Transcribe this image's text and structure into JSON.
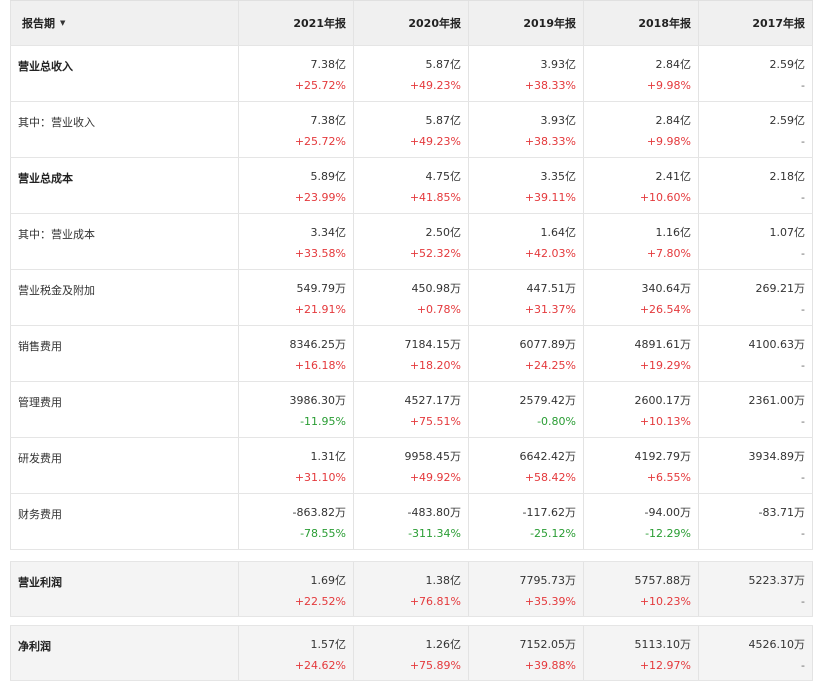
{
  "header": {
    "period_label": "报告期",
    "columns": [
      "2021年报",
      "2020年报",
      "2019年报",
      "2018年报",
      "2017年报"
    ]
  },
  "colors": {
    "up": "#e4393c",
    "down": "#2a9d34"
  },
  "rows": [
    {
      "label": "营业总收入",
      "bold": true,
      "values": [
        "7.38亿",
        "5.87亿",
        "3.93亿",
        "2.84亿",
        "2.59亿"
      ],
      "changes": [
        "+25.72%",
        "+49.23%",
        "+38.33%",
        "+9.98%",
        "-"
      ]
    },
    {
      "label": "其中：营业收入",
      "bold": false,
      "values": [
        "7.38亿",
        "5.87亿",
        "3.93亿",
        "2.84亿",
        "2.59亿"
      ],
      "changes": [
        "+25.72%",
        "+49.23%",
        "+38.33%",
        "+9.98%",
        "-"
      ]
    },
    {
      "label": "营业总成本",
      "bold": true,
      "values": [
        "5.89亿",
        "4.75亿",
        "3.35亿",
        "2.41亿",
        "2.18亿"
      ],
      "changes": [
        "+23.99%",
        "+41.85%",
        "+39.11%",
        "+10.60%",
        "-"
      ]
    },
    {
      "label": "其中：营业成本",
      "bold": false,
      "values": [
        "3.34亿",
        "2.50亿",
        "1.64亿",
        "1.16亿",
        "1.07亿"
      ],
      "changes": [
        "+33.58%",
        "+52.32%",
        "+42.03%",
        "+7.80%",
        "-"
      ]
    },
    {
      "label": "营业税金及附加",
      "bold": false,
      "values": [
        "549.79万",
        "450.98万",
        "447.51万",
        "340.64万",
        "269.21万"
      ],
      "changes": [
        "+21.91%",
        "+0.78%",
        "+31.37%",
        "+26.54%",
        "-"
      ]
    },
    {
      "label": "销售费用",
      "bold": false,
      "values": [
        "8346.25万",
        "7184.15万",
        "6077.89万",
        "4891.61万",
        "4100.63万"
      ],
      "changes": [
        "+16.18%",
        "+18.20%",
        "+24.25%",
        "+19.29%",
        "-"
      ]
    },
    {
      "label": "管理费用",
      "bold": false,
      "values": [
        "3986.30万",
        "4527.17万",
        "2579.42万",
        "2600.17万",
        "2361.00万"
      ],
      "changes": [
        "-11.95%",
        "+75.51%",
        "-0.80%",
        "+10.13%",
        "-"
      ]
    },
    {
      "label": "研发费用",
      "bold": false,
      "values": [
        "1.31亿",
        "9958.45万",
        "6642.42万",
        "4192.79万",
        "3934.89万"
      ],
      "changes": [
        "+31.10%",
        "+49.92%",
        "+58.42%",
        "+6.55%",
        "-"
      ]
    },
    {
      "label": "财务费用",
      "bold": false,
      "values": [
        "-863.82万",
        "-483.80万",
        "-117.62万",
        "-94.00万",
        "-83.71万"
      ],
      "changes": [
        "-78.55%",
        "-311.34%",
        "-25.12%",
        "-12.29%",
        "-"
      ]
    }
  ],
  "summary_rows": [
    {
      "label": "营业利润",
      "bold": true,
      "values": [
        "1.69亿",
        "1.38亿",
        "7795.73万",
        "5757.88万",
        "5223.37万"
      ],
      "changes": [
        "+22.52%",
        "+76.81%",
        "+35.39%",
        "+10.23%",
        "-"
      ]
    },
    {
      "label": "净利润",
      "bold": true,
      "values": [
        "1.57亿",
        "1.26亿",
        "7152.05万",
        "5113.10万",
        "4526.10万"
      ],
      "changes": [
        "+24.62%",
        "+75.89%",
        "+39.88%",
        "+12.97%",
        "-"
      ]
    }
  ]
}
